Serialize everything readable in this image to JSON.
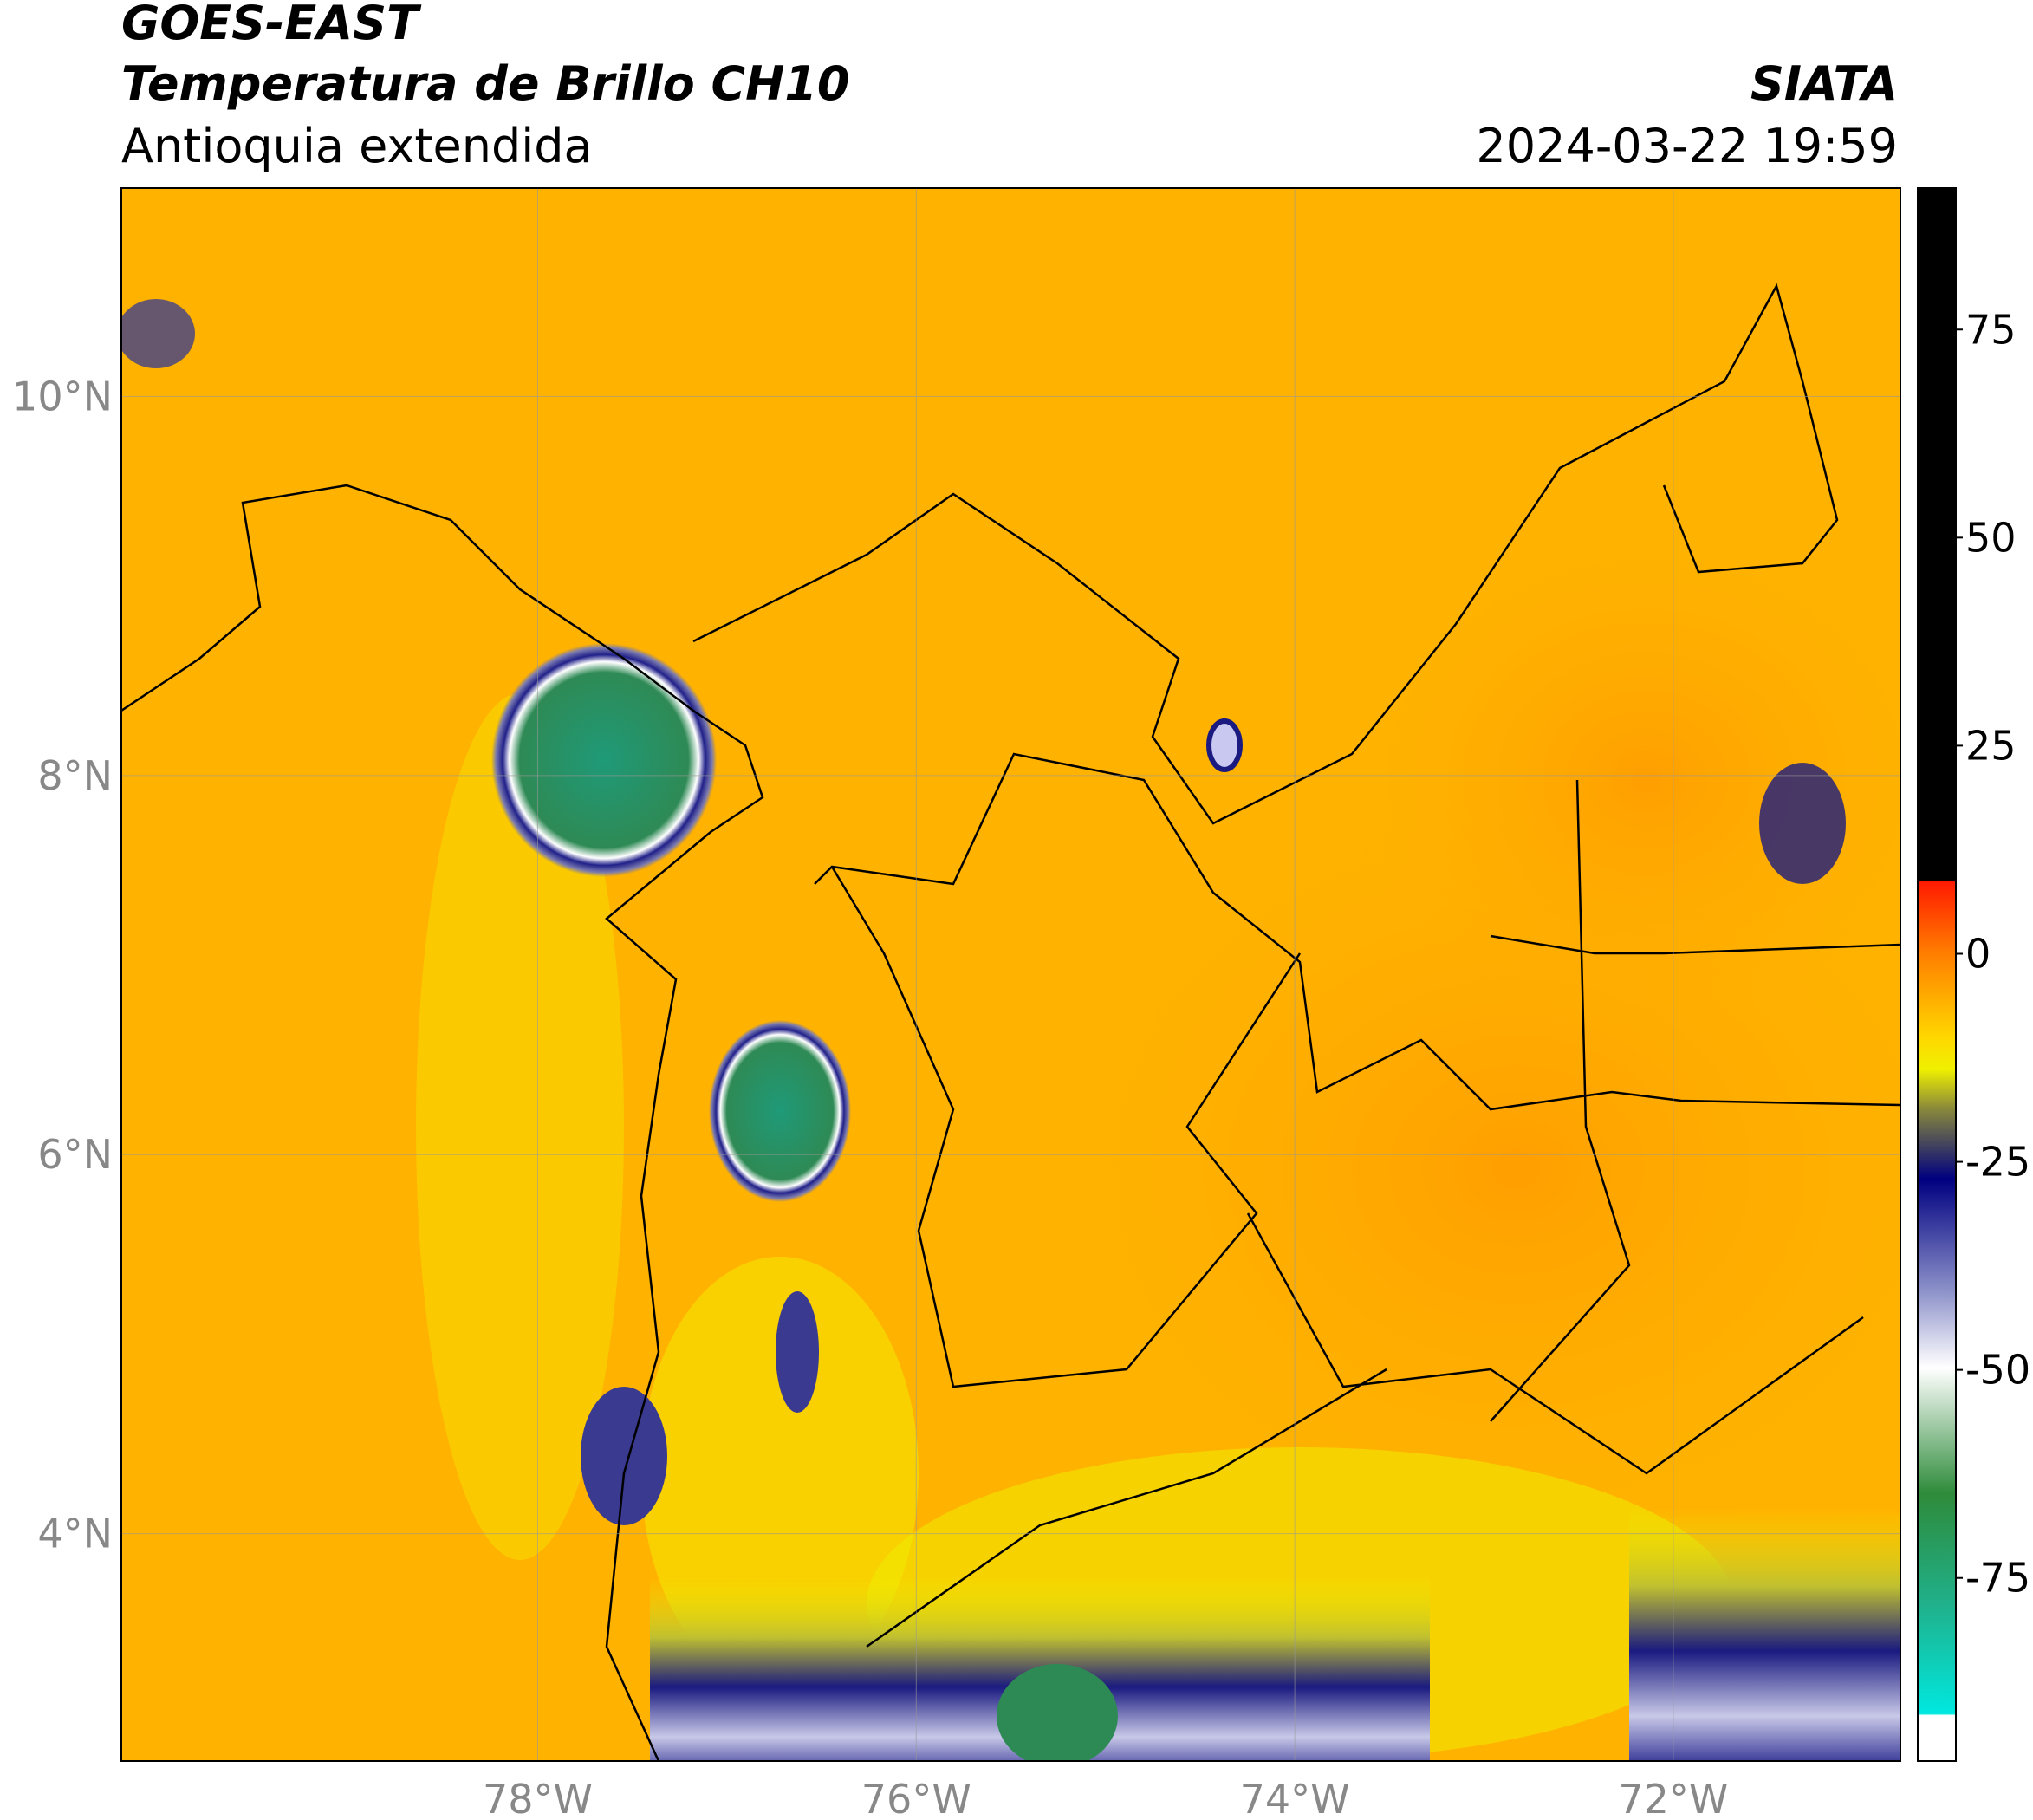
{
  "header": {
    "satellite": "GOES-EAST",
    "product": "Temperatura de Brillo CH10",
    "region": "Antioquia extendida",
    "source": "SIATA",
    "datetime": "2024-03-22 19:59"
  },
  "map": {
    "xlim": [
      -80.2,
      -70.8
    ],
    "ylim": [
      2.8,
      11.1
    ],
    "xticks": [
      {
        "value": -78,
        "label": "78°W"
      },
      {
        "value": -76,
        "label": "76°W"
      },
      {
        "value": -74,
        "label": "74°W"
      },
      {
        "value": -72,
        "label": "72°W"
      }
    ],
    "yticks": [
      {
        "value": 4,
        "label": "4°N"
      },
      {
        "value": 6,
        "label": "6°N"
      },
      {
        "value": 8,
        "label": "8°N"
      },
      {
        "value": 10,
        "label": "10°N"
      }
    ]
  },
  "colorbar": {
    "lim": [
      -97,
      92
    ],
    "ticks": [
      75,
      50,
      25,
      0,
      -25,
      -50,
      -75
    ]
  }
}
